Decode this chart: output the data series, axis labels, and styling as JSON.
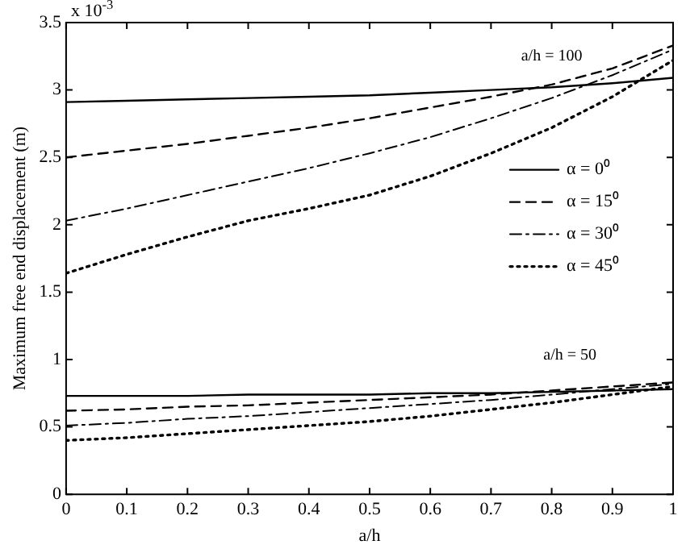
{
  "chart_data": {
    "type": "line",
    "xlabel": "a/h",
    "ylabel": "Maximum free end displacement (m)",
    "x": [
      0,
      0.1,
      0.2,
      0.3,
      0.4,
      0.5,
      0.6,
      0.7,
      0.8,
      0.9,
      1
    ],
    "series": [
      {
        "name": "α = 0⁰",
        "color": "#000000",
        "line_style": "solid",
        "values": [
          2.91,
          2.92,
          2.93,
          2.94,
          2.95,
          2.96,
          2.98,
          3.0,
          3.02,
          3.05,
          3.09
        ]
      },
      {
        "name": "α = 15⁰",
        "color": "#000000",
        "line_style": "dashed",
        "values": [
          2.5,
          2.55,
          2.6,
          2.66,
          2.72,
          2.79,
          2.87,
          2.95,
          3.04,
          3.16,
          3.33
        ]
      },
      {
        "name": "α = 30⁰",
        "color": "#000000",
        "line_style": "dashdot",
        "values": [
          2.03,
          2.12,
          2.22,
          2.32,
          2.42,
          2.53,
          2.65,
          2.79,
          2.94,
          3.11,
          3.3
        ]
      },
      {
        "name": "α = 45⁰",
        "color": "#000000",
        "line_style": "dotted",
        "values": [
          1.64,
          1.78,
          1.91,
          2.03,
          2.12,
          2.22,
          2.36,
          2.53,
          2.72,
          2.95,
          3.22
        ]
      },
      {
        "color": "#000000",
        "line_style": "solid",
        "values": [
          0.73,
          0.73,
          0.73,
          0.74,
          0.74,
          0.74,
          0.75,
          0.75,
          0.76,
          0.77,
          0.78
        ]
      },
      {
        "color": "#000000",
        "line_style": "dashed",
        "values": [
          0.62,
          0.63,
          0.65,
          0.66,
          0.68,
          0.7,
          0.72,
          0.74,
          0.77,
          0.8,
          0.83
        ]
      },
      {
        "color": "#000000",
        "line_style": "dashdot",
        "values": [
          0.51,
          0.53,
          0.56,
          0.58,
          0.61,
          0.64,
          0.67,
          0.7,
          0.74,
          0.78,
          0.82
        ]
      },
      {
        "color": "#000000",
        "line_style": "dotted",
        "values": [
          0.4,
          0.42,
          0.45,
          0.48,
          0.51,
          0.54,
          0.58,
          0.63,
          0.68,
          0.74,
          0.8
        ]
      }
    ],
    "xlim": [
      0,
      1
    ],
    "xticks": [
      0,
      0.1,
      0.2,
      0.3,
      0.4,
      0.5,
      0.6,
      0.7,
      0.8,
      0.9,
      1
    ],
    "ylim": [
      0,
      3.5
    ],
    "yticks": [
      0,
      0.5,
      1,
      1.5,
      2,
      2.5,
      3,
      3.5
    ],
    "grid": false,
    "legend": "right",
    "marker": "none",
    "annotations": [
      "x 10$^{-3}$",
      "a/h = 100",
      "a/h = 50"
    ]
  }
}
